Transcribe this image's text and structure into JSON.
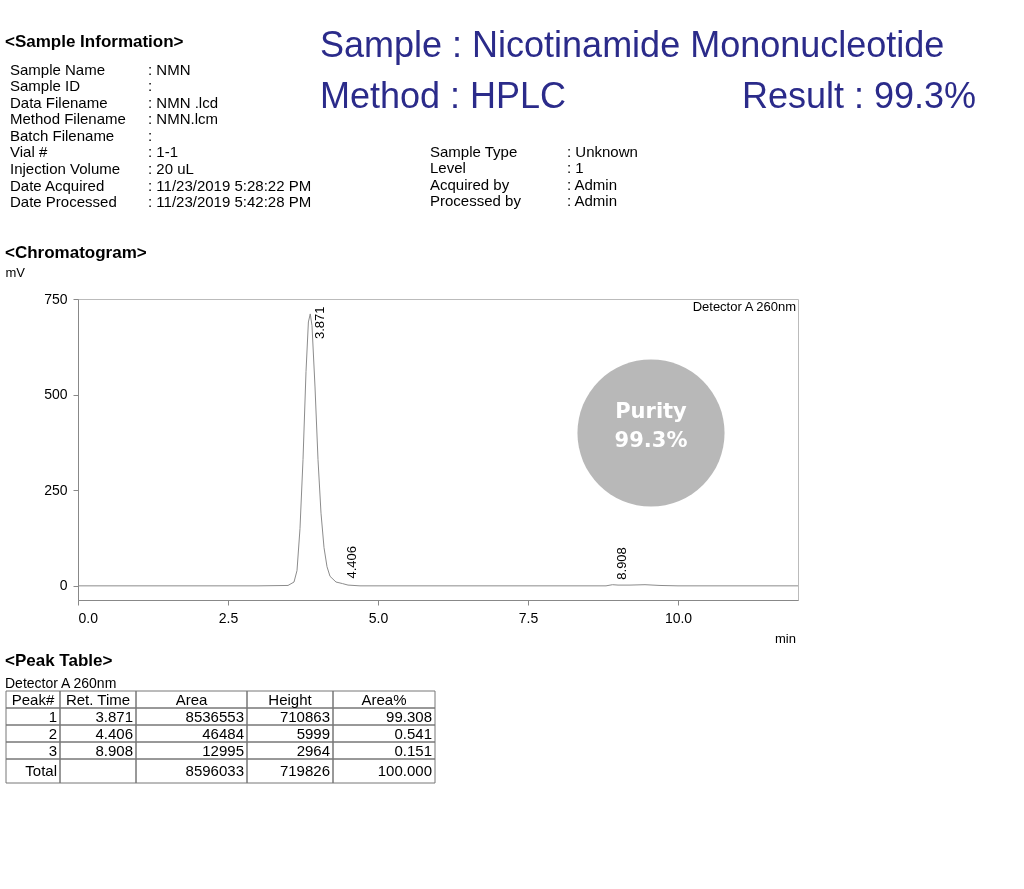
{
  "chart_data": {
    "type": "line",
    "xlabel": "min",
    "ylabel": "mV",
    "x": [
      0,
      1,
      2,
      3,
      3.5,
      3.6,
      3.65,
      3.7,
      3.75,
      3.8,
      3.84,
      3.871,
      3.9,
      3.95,
      4.0,
      4.05,
      4.1,
      4.15,
      4.2,
      4.3,
      4.406,
      4.5,
      4.7,
      5,
      6,
      7,
      8,
      8.8,
      8.908,
      9.0,
      9.2,
      9.45,
      9.7,
      10,
      11,
      12
    ],
    "series": [
      {
        "color": "#8c8c8c",
        "values": [
          0,
          0,
          0,
          0,
          1,
          10,
          40,
          150,
          330,
          560,
          690,
          711,
          680,
          520,
          330,
          190,
          100,
          50,
          25,
          10,
          6,
          2,
          0,
          0,
          0,
          0,
          0,
          0,
          3,
          2,
          2,
          3,
          1,
          0,
          0,
          0
        ]
      }
    ],
    "xlim": [
      0,
      12
    ],
    "ylim": [
      -37,
      750
    ],
    "xticks": [
      {
        "value": 0,
        "label": "0.0"
      },
      2.5,
      {
        "value": 5,
        "label": "5.0"
      },
      7.5,
      {
        "value": 10,
        "label": "10.0"
      }
    ],
    "yticks": [
      0,
      250,
      500,
      750
    ],
    "grid": false,
    "marker": "none",
    "line_style": "solid",
    "annotations": [
      "<Sample Information>",
      "Sample Name",
      "Sample ID",
      "Data Filename",
      "Method Filename",
      "Batch Filename",
      "Vial #",
      "Injection Volume",
      "Date Acquired",
      "Date Processed",
      ": NMN",
      ":",
      ": NMN .lcd",
      ": NMN.lcm",
      ":",
      ": 1-1",
      ": 20 uL",
      ": 11/23/2019 5:28:22 PM",
      ": 11/23/2019 5:42:28 PM",
      "Sample Type",
      "Level",
      "Acquired by",
      "Processed by",
      ": Unknown",
      ": 1",
      ": Admin",
      ": Admin",
      "Sample   : Nicotinamide Mononucleotide",
      "Method  : HPLC",
      "Result : 99.3%",
      "<Chromatogram>",
      "Detector A 260nm",
      "Purity",
      "99.3%",
      {
        "text": "3.871",
        "x": 3.871,
        "y": 711
      },
      {
        "text": "4.406",
        "x": 4.406,
        "y": 6
      },
      {
        "text": "8.908",
        "x": 8.908,
        "y": 3
      },
      "<Peak Table>",
      "Detector A 260nm",
      "Peak#",
      "Ret. Time",
      "Area",
      "Height",
      "Area%",
      "1",
      "3.871",
      "8536553",
      "710863",
      "99.308",
      "2",
      "4.406",
      "46484",
      "5999",
      "0.541",
      "3",
      "8.908",
      "12995",
      "2964",
      "0.151",
      "Total",
      "8596033",
      "719826",
      "100.000"
    ]
  }
}
